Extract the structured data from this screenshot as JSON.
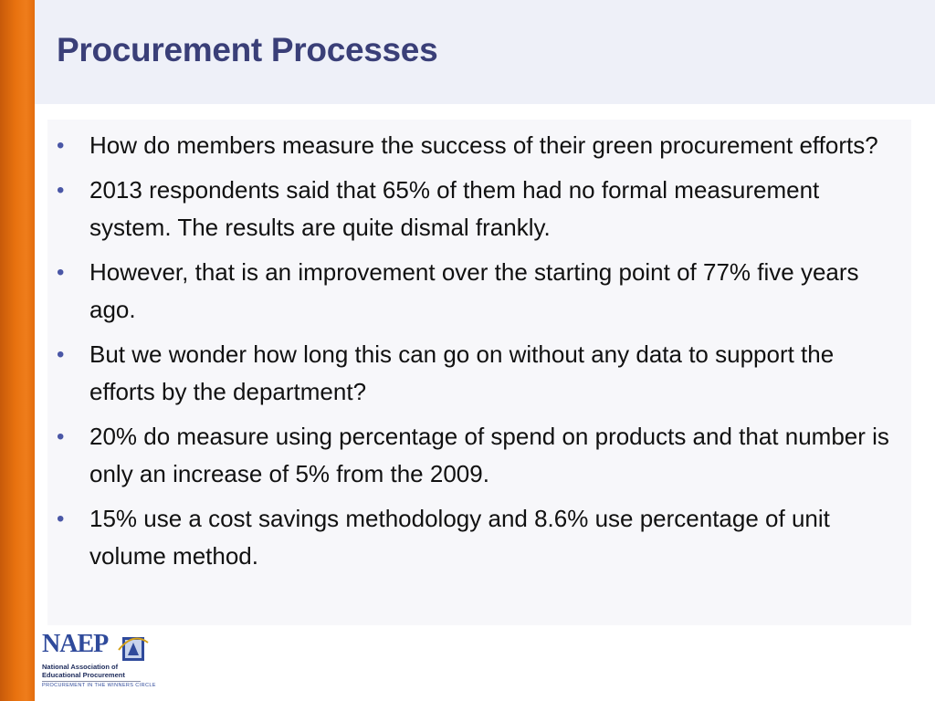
{
  "slide": {
    "title": "Procurement Processes",
    "bullets": [
      "How do members measure the success of their green procurement efforts?",
      "2013 respondents said that 65% of them had no formal measurement system. The results are quite dismal frankly.",
      "However, that is an improvement over the starting point of 77% five years ago.",
      "But we wonder how long this can go on without any data to support the efforts by the department?",
      "20% do measure using percentage of spend on products and that number is only an increase of 5% from the 2009.",
      "15% use a cost savings methodology and 8.6% use percentage of unit volume method."
    ]
  },
  "logo": {
    "wordmark": "NAEP",
    "line1": "National Association of",
    "line2": "Educational Procurement",
    "tagline": "PROCUREMENT IN THE WINNERS CIRCLE",
    "accent_color": "#2f4a9b"
  },
  "colors": {
    "accent_bar": "#e8720f",
    "title_text": "#3a3f78",
    "bullet_marker": "#4a57a6"
  }
}
